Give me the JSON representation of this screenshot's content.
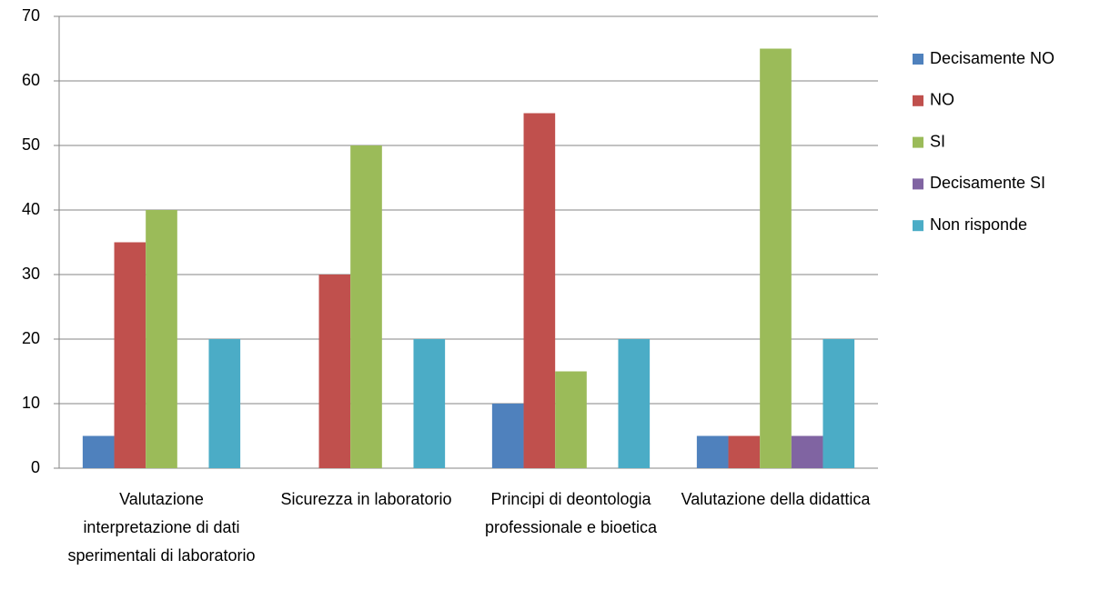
{
  "chart_data": {
    "type": "bar",
    "categories": [
      "Valutazione interpretazione di dati sperimentali di laboratorio",
      "Sicurezza in laboratorio",
      "Principi di deontologia professionale e bioetica",
      "Valutazione della didattica"
    ],
    "series": [
      {
        "name": "Decisamente NO",
        "color": "#4f81bd",
        "values": [
          5,
          0,
          10,
          5
        ]
      },
      {
        "name": "NO",
        "color": "#c0504d",
        "values": [
          35,
          30,
          55,
          5
        ]
      },
      {
        "name": "SI",
        "color": "#9bbb59",
        "values": [
          40,
          50,
          15,
          65
        ]
      },
      {
        "name": "Decisamente SI",
        "color": "#8064a2",
        "values": [
          0,
          0,
          0,
          5
        ]
      },
      {
        "name": "Non risponde",
        "color": "#4bacc6",
        "values": [
          20,
          20,
          20,
          20
        ]
      }
    ],
    "ylim": [
      0,
      70
    ],
    "yticks": [
      0,
      10,
      20,
      30,
      40,
      50,
      60,
      70
    ],
    "grid": true,
    "legend": "right"
  }
}
